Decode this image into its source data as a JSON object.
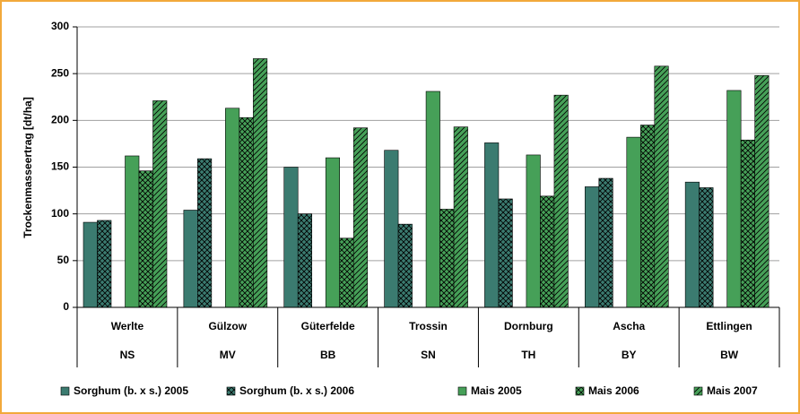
{
  "chart_data": {
    "type": "bar",
    "y_label": "Trockenmasseertrag [dt/ha]",
    "categories": [
      "Werlte",
      "Gülzow",
      "Güterfelde",
      "Trossin",
      "Dornburg",
      "Ascha",
      "Ettlingen"
    ],
    "sub_categories": [
      "NS",
      "MV",
      "BB",
      "SN",
      "TH",
      "BY",
      "BW"
    ],
    "series": [
      {
        "name": "Sorghum (b. x s.) 2005",
        "color": "#3b7b70",
        "pattern": "solid",
        "values": [
          91,
          104,
          150,
          168,
          176,
          129,
          134
        ]
      },
      {
        "name": "Sorghum (b. x s.) 2006",
        "color": "#3b7b70",
        "pattern": "crosshatch",
        "values": [
          93,
          159,
          100,
          89,
          116,
          138,
          128
        ]
      },
      {
        "name": "Mais 2005",
        "color": "#46a058",
        "pattern": "solid",
        "values": [
          162,
          213,
          160,
          231,
          163,
          182,
          232
        ]
      },
      {
        "name": "Mais 2006",
        "color": "#46a058",
        "pattern": "crosshatch",
        "values": [
          146,
          203,
          74,
          105,
          119,
          195,
          179
        ]
      },
      {
        "name": "Mais 2007",
        "color": "#46a058",
        "pattern": "diagonal",
        "values": [
          221,
          266,
          192,
          193,
          227,
          258,
          248
        ]
      }
    ],
    "ylim": [
      0,
      300
    ],
    "yticks": [
      0,
      50,
      100,
      150,
      200,
      250,
      300
    ],
    "grid": true
  }
}
